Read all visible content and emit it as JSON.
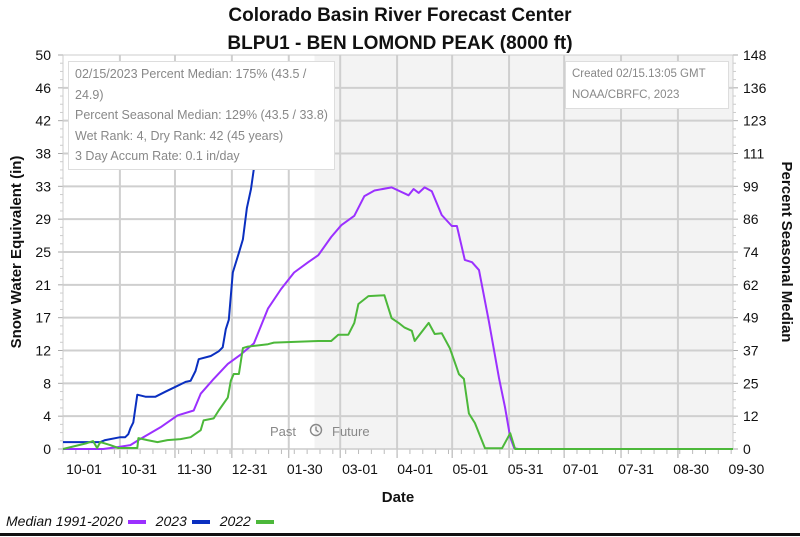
{
  "chart_data": {
    "type": "line",
    "title": "Colorado Basin River Forecast Center",
    "subtitle": "BLPU1 - BEN LOMOND PEAK (8000 ft)",
    "xlabel": "Date",
    "ylabel": "Snow Water Equivalent (in)",
    "y2label": "Percent Seasonal Median",
    "x_unit": "days since 10-01",
    "xlim": [
      0,
      365
    ],
    "ylim": [
      0,
      50
    ],
    "y2lim": [
      0,
      148
    ],
    "grid": true,
    "x_ticks": [
      "10-01",
      "10-31",
      "11-30",
      "12-31",
      "01-30",
      "03-01",
      "04-01",
      "05-01",
      "05-31",
      "07-01",
      "07-31",
      "08-30",
      "09-30"
    ],
    "y_ticks": [
      "0",
      "4",
      "8",
      "12",
      "17",
      "21",
      "25",
      "29",
      "33",
      "38",
      "42",
      "46",
      "50"
    ],
    "y2_ticks": [
      "0",
      "12",
      "25",
      "37",
      "49",
      "62",
      "74",
      "86",
      "99",
      "111",
      "123",
      "136",
      "148"
    ],
    "forecast_start_day": 137,
    "past_label": "Past",
    "future_label": "Future",
    "series": [
      {
        "name": "Median 1991-2020",
        "color": "#9b30ff",
        "x": [
          0,
          21.9,
          30.1,
          36.7,
          41.1,
          53.1,
          62.4,
          71.2,
          75.0,
          82.1,
          89.8,
          96.9,
          104.0,
          111.6,
          118.8,
          125.9,
          133.6,
          139.1,
          146.1,
          151.6,
          158.7,
          164.2,
          169.7,
          179.0,
          188.3,
          191.0,
          193.8,
          197.0,
          200.9,
          206.3,
          211.8,
          214.6,
          218.9,
          222.8,
          226.6,
          232.1,
          237.5,
          240.8,
          243.6,
          245.8,
          248,
          365
        ],
        "y": [
          0,
          0,
          0.25,
          0.5,
          1.13,
          2.76,
          4.26,
          4.89,
          7.02,
          8.9,
          10.8,
          12.0,
          13.4,
          17.8,
          20.3,
          22.4,
          23.7,
          24.6,
          26.9,
          28.4,
          29.6,
          32.1,
          32.8,
          33.2,
          32.2,
          33.0,
          32.5,
          33.2,
          32.7,
          29.7,
          28.3,
          28.3,
          24.0,
          23.7,
          22.7,
          16.1,
          9.0,
          5.3,
          1.5,
          0.1,
          0,
          0
        ]
      },
      {
        "name": "2023",
        "color": "#0a2fc0",
        "x": [
          0,
          20.3,
          23.0,
          31.2,
          33.9,
          35.6,
          36.7,
          38.3,
          39.4,
          40.5,
          44.9,
          50.4,
          55.8,
          61.3,
          66.8,
          69.5,
          72.2,
          73.9,
          80.5,
          84.8,
          87.0,
          88.7,
          90.3,
          92.5,
          95.8,
          98.0,
          100.2,
          102.4,
          104.0,
          106.7,
          108.9,
          113.3,
          116.0,
          118.8,
          122.6,
          125.3,
          131.4,
          137
        ],
        "y": [
          0.88,
          0.88,
          1.13,
          1.5,
          1.5,
          1.88,
          2.63,
          3.38,
          5.14,
          6.89,
          6.64,
          6.64,
          7.27,
          7.89,
          8.52,
          8.65,
          9.9,
          11.4,
          11.8,
          12.4,
          12.9,
          15.2,
          16.4,
          22.4,
          24.9,
          26.6,
          30.6,
          33.0,
          35.6,
          36.8,
          38.0,
          39.0,
          40.5,
          40.9,
          41.2,
          42.4,
          42.7,
          43.5
        ]
      },
      {
        "name": "2022",
        "color": "#4cb83a",
        "x": [
          0,
          13.1,
          16.4,
          18.6,
          20.3,
          25.7,
          30.1,
          40.5,
          41.1,
          46.0,
          51.5,
          56.9,
          64.0,
          69.5,
          75.0,
          76.6,
          82.1,
          84.8,
          89.8,
          91.4,
          93.0,
          95.8,
          98.0,
          100.7,
          111.7,
          114.9,
          139.0,
          146.1,
          150.0,
          155.4,
          158.7,
          160.9,
          166.4,
          175.1,
          179.0,
          182.8,
          186.1,
          190.0,
          191.6,
          199.2,
          202.5,
          206.3,
          210.7,
          215.7,
          218.4,
          221.1,
          224.4,
          229.9,
          239.2,
          243.6,
          246.3,
          365
        ],
        "y": [
          0,
          0.75,
          1.0,
          0.13,
          0.88,
          0.5,
          0.13,
          0.13,
          1.38,
          1.13,
          0.88,
          1.13,
          1.25,
          1.5,
          2.38,
          3.63,
          3.88,
          4.89,
          6.52,
          8.65,
          9.52,
          9.52,
          12.8,
          13.0,
          13.3,
          13.5,
          13.7,
          13.7,
          14.5,
          14.5,
          16.0,
          18.4,
          19.4,
          19.5,
          16.6,
          16.0,
          15.4,
          15.0,
          13.7,
          16.0,
          14.6,
          14.7,
          12.8,
          9.5,
          8.9,
          4.5,
          3.3,
          0.1,
          0.1,
          2.0,
          0,
          0
        ]
      }
    ]
  },
  "info": {
    "line1": "02/15/2023 Percent Median: 175% (43.5 / 24.9)",
    "line2": "Percent Seasonal Median: 129% (43.5 / 33.8)",
    "line3": "Wet Rank: 4, Dry Rank: 42  (45 years)",
    "line4": "3 Day Accum Rate: 0.1 in/day",
    "created": "Created 02/15.13:05 GMT",
    "credit": "NOAA/CBRFC, 2023"
  },
  "legend": {
    "items": [
      {
        "label": "Median 1991-2020",
        "color": "#9b30ff"
      },
      {
        "label": "2023",
        "color": "#0a2fc0"
      },
      {
        "label": "2022",
        "color": "#4cb83a"
      }
    ]
  }
}
